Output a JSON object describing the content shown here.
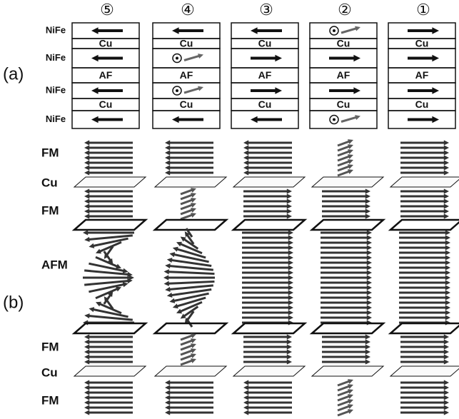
{
  "column_labels": [
    "⑤",
    "④",
    "③",
    "②",
    "①"
  ],
  "panel_a": {
    "label": "(a)",
    "layer_labels": [
      "NiFe",
      "NiFe",
      "NiFe",
      "NiFe"
    ],
    "columns": [
      {
        "cells": [
          "Cu",
          "AF",
          "Cu"
        ]
      },
      {
        "cells": [
          "Cu",
          "AF",
          "Cu"
        ]
      },
      {
        "cells": [
          "Cu",
          "AF",
          "Cu"
        ]
      },
      {
        "cells": [
          "Cu",
          "AF",
          "Cu"
        ]
      },
      {
        "cells": [
          "Cu",
          "AF",
          "Cu"
        ]
      }
    ]
  },
  "panel_b": {
    "label": "(b)",
    "layer_labels": [
      "FM",
      "Cu",
      "FM",
      "AFM",
      "FM",
      "Cu",
      "FM"
    ]
  }
}
